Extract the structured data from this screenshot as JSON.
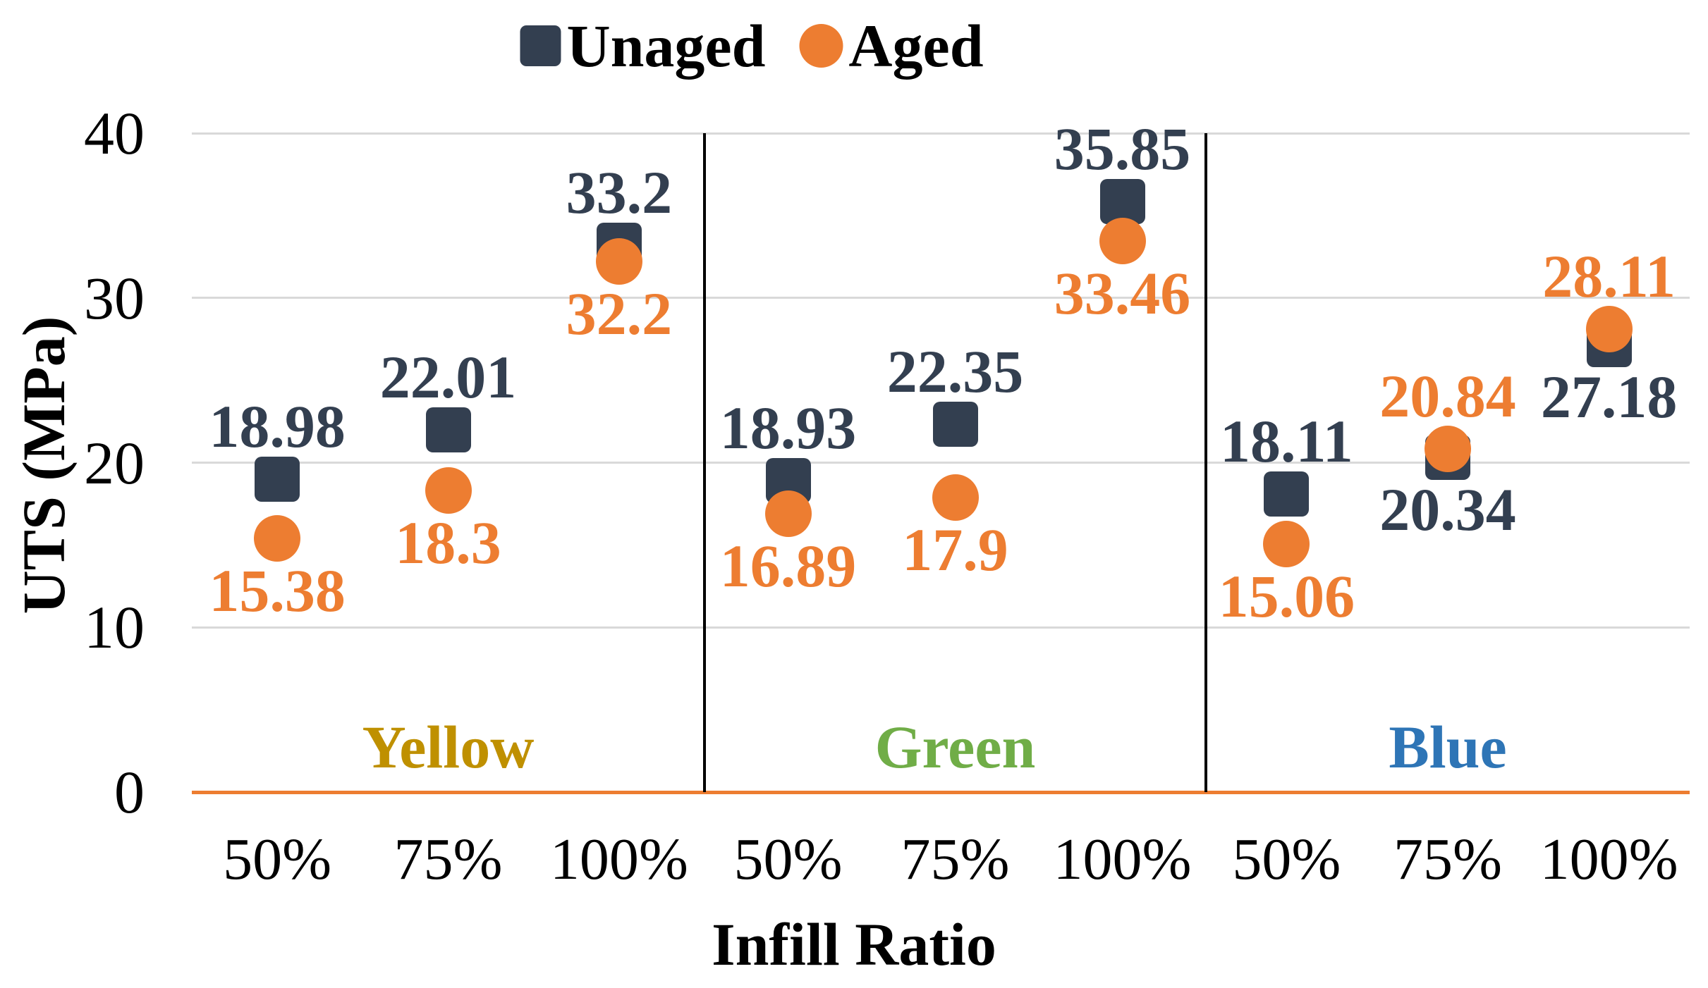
{
  "chart_data": {
    "type": "scatter",
    "title": "",
    "xlabel": "Infill Ratio",
    "ylabel": "UTS (MPa)",
    "ylim": [
      0,
      40
    ],
    "yticks": [
      0,
      10,
      20,
      30,
      40
    ],
    "grid": true,
    "legend_position": "top-center",
    "categories": [
      "50%",
      "75%",
      "100%"
    ],
    "groups": [
      {
        "name": "Yellow",
        "color": "#BF9000"
      },
      {
        "name": "Green",
        "color": "#70AD47"
      },
      {
        "name": "Blue",
        "color": "#2E75B6"
      }
    ],
    "series": [
      {
        "name": "Unaged",
        "marker": "square",
        "color": "#333F50",
        "values": [
          [
            18.98,
            22.01,
            33.2
          ],
          [
            18.93,
            22.35,
            35.85
          ],
          [
            18.11,
            20.34,
            27.18
          ]
        ]
      },
      {
        "name": "Aged",
        "marker": "circle",
        "color": "#ED7D31",
        "values": [
          [
            15.38,
            18.3,
            32.2
          ],
          [
            16.89,
            17.9,
            33.46
          ],
          [
            15.06,
            20.84,
            28.11
          ]
        ]
      }
    ],
    "axis_line_color": "#ED7D31",
    "gridline_color": "#D9D9D9",
    "divider_color": "#000000",
    "tick_text_color": "#000000"
  }
}
